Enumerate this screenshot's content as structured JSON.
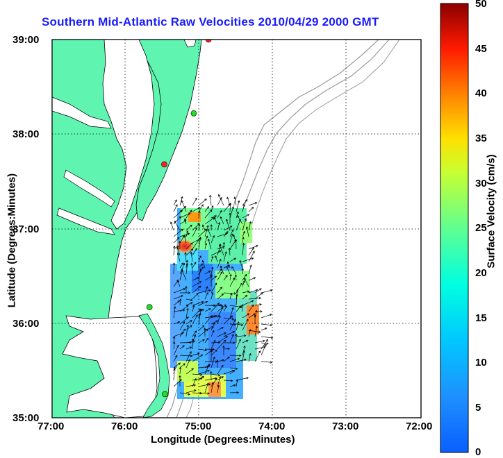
{
  "title": "Southern Mid-Atlantic Raw Velocities 2010/04/29 2000 GMT",
  "xlabel": "Longitude (Degrees:Minutes)",
  "ylabel": "Latitude (Degrees:Minutes)",
  "x_ticks": [
    "77:00",
    "76:00",
    "75:00",
    "74:00",
    "73:00",
    "72:00"
  ],
  "y_ticks": [
    "39:00",
    "38:00",
    "37:00",
    "36:00",
    "35:00"
  ],
  "colorbar": {
    "label": "Surface Velocity (cm/s)",
    "ticks": [
      "50",
      "45",
      "40",
      "35",
      "30",
      "25",
      "20",
      "15",
      "10",
      "5",
      "0"
    ],
    "range": [
      0,
      50
    ],
    "colormap": "jet"
  },
  "colors": {
    "land": "#5ff5b0",
    "water": "#ffffff",
    "title": "#1a1aff",
    "bathymetry": "#999999",
    "grid": "#000000"
  },
  "chart_data": {
    "type": "heatmap",
    "xlim": [
      -77,
      -72
    ],
    "ylim": [
      35,
      39
    ],
    "sites": [
      {
        "lon": -74.88,
        "lat": 39.0,
        "color": "#ff2020"
      },
      {
        "lon": -75.08,
        "lat": 38.22,
        "color": "#20e020"
      },
      {
        "lon": -75.48,
        "lat": 37.68,
        "color": "#ff2020"
      },
      {
        "lon": -75.68,
        "lat": 36.17,
        "color": "#20e020"
      },
      {
        "lon": -75.47,
        "lat": 35.25,
        "color": "#20e020"
      }
    ]
  }
}
